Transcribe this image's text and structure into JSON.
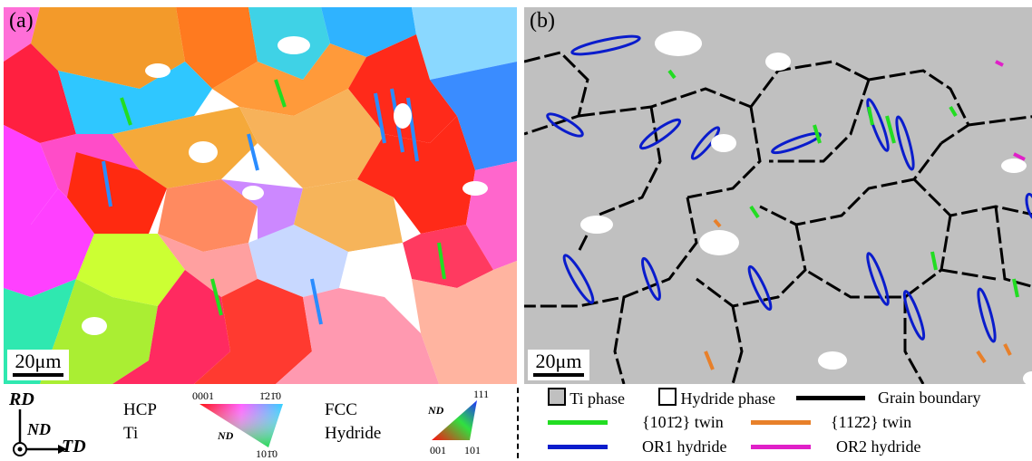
{
  "panel_a": {
    "label": "(a)",
    "scale_text": "20μm"
  },
  "panel_b": {
    "label": "(b)",
    "scale_text": "20μm"
  },
  "axes": {
    "rd": "RD",
    "nd": "ND",
    "td": "TD"
  },
  "ipf_hcp": {
    "phase_line1": "HCP",
    "phase_line2": "Ti",
    "corner_top_left": "0001",
    "corner_top_right": "1̄21̄0",
    "corner_bottom": "101̄0",
    "nd_label": "ND"
  },
  "ipf_fcc": {
    "phase_line1": "FCC",
    "phase_line2": "Hydride",
    "corner_top": "111",
    "corner_bottom_left": "001",
    "corner_bottom_right": "101",
    "nd_label": "ND"
  },
  "key": {
    "ti_phase": "Ti phase",
    "hydride_phase": "Hydride phase",
    "grain_boundary": "Grain boundary",
    "twin_1012": "{101̄2} twin",
    "twin_1122": "{112̄2} twin",
    "or1": "OR1 hydride",
    "or2": "OR2 hydride"
  },
  "colors": {
    "ti_phase": "#c0c0c0",
    "hydride": "#ffffff",
    "grain_boundary": "#000000",
    "twin_1012": "#22dd22",
    "twin_1122": "#e8802a",
    "or1": "#0a1ccc",
    "or2": "#e020c8"
  }
}
